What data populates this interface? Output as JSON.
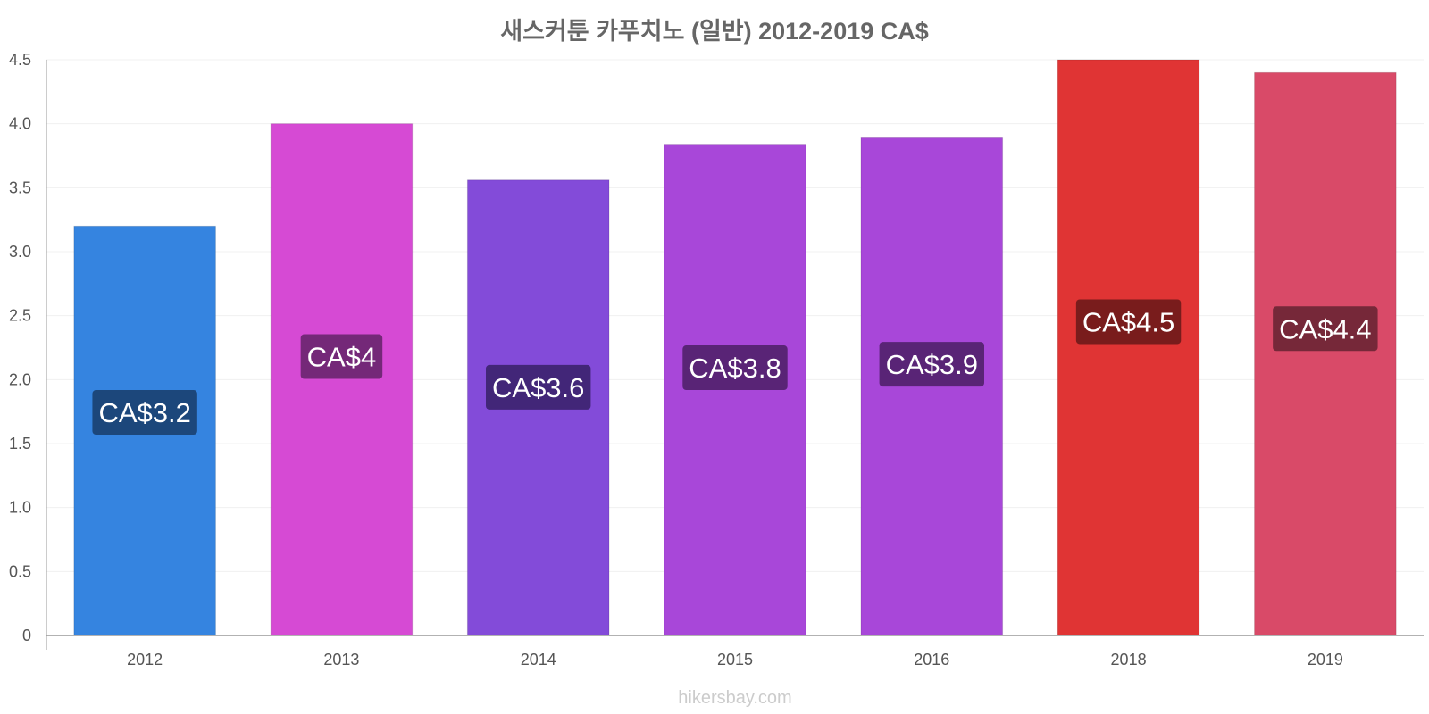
{
  "chart_data": {
    "type": "bar",
    "title": "새스커툰 카푸치노 (일반) 2012-2019 CA$",
    "categories": [
      "2012",
      "2013",
      "2014",
      "2015",
      "2016",
      "2018",
      "2019"
    ],
    "values": [
      3.2,
      4.0,
      3.56,
      3.84,
      3.89,
      4.5,
      4.4
    ],
    "value_labels": [
      "CA$3.2",
      "CA$4",
      "CA$3.6",
      "CA$3.8",
      "CA$3.9",
      "CA$4.5",
      "CA$4.4"
    ],
    "bar_colors": [
      "#3584e0",
      "#d64ad4",
      "#834bd9",
      "#a847d9",
      "#a847d9",
      "#e03434",
      "#d94a68"
    ],
    "label_bg_colors": [
      "#1a4272",
      "#6b2570",
      "#3d2370",
      "#52226e",
      "#52226e",
      "#701a1a",
      "#6e2535"
    ],
    "xlabel": "",
    "ylabel": "",
    "ylim": [
      0,
      4.5
    ],
    "yticks": [
      0,
      0.5,
      1.0,
      1.5,
      2.0,
      2.5,
      3.0,
      3.5,
      4.0,
      4.5
    ],
    "ytick_labels": [
      "0",
      "0.5",
      "1.0",
      "1.5",
      "2.0",
      "2.5",
      "3.0",
      "3.5",
      "4.0",
      "4.5"
    ],
    "grid": true,
    "legend": "none"
  },
  "watermark": "hikersbay.com"
}
